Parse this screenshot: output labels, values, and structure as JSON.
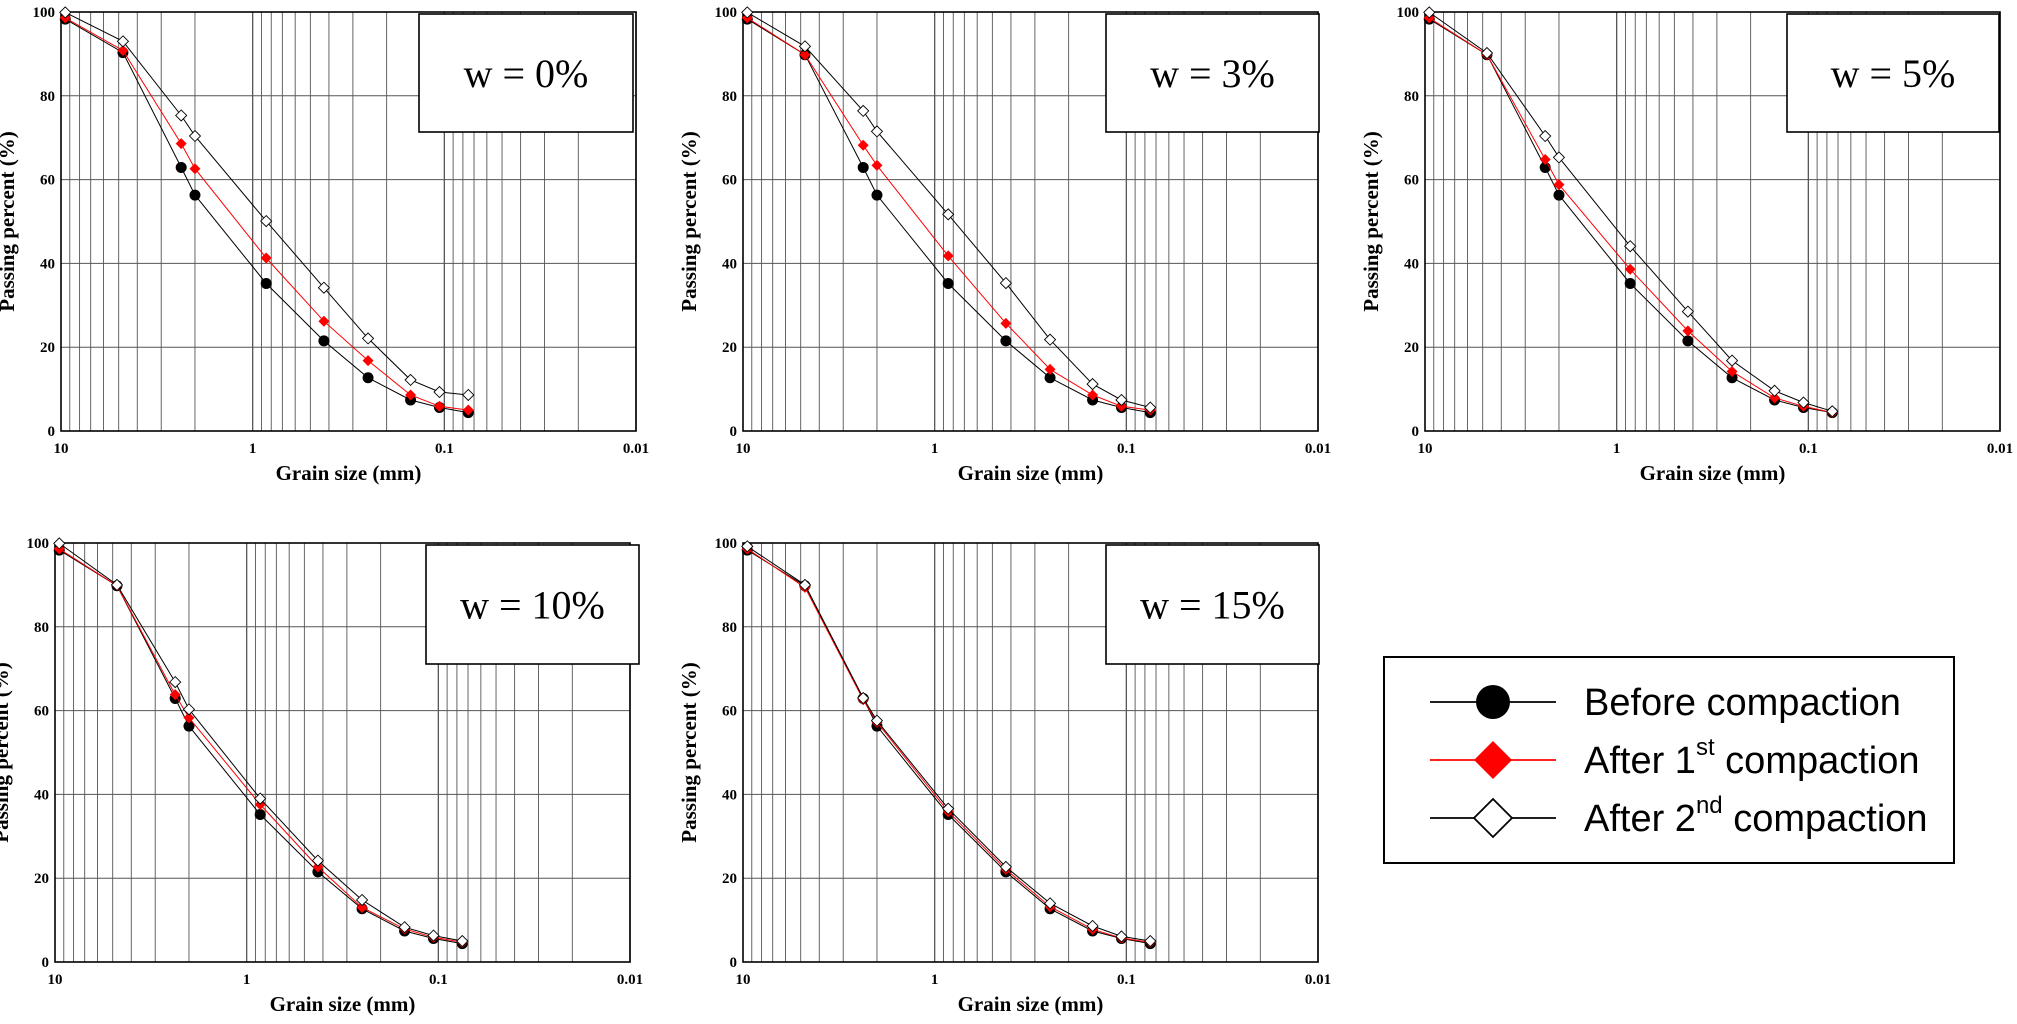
{
  "chart_data": [
    {
      "type": "line",
      "annotation": "w = 0%",
      "xlabel": "Grain size (mm)",
      "ylabel": "Passing percent (%)",
      "xscale": "log",
      "x_reversed": true,
      "xlim": [
        10,
        0.01
      ],
      "ylim": [
        0,
        100
      ],
      "xticks": [
        "10",
        "1",
        "0.1",
        "0.01"
      ],
      "yticks": [
        "0",
        "20",
        "40",
        "60",
        "80",
        "100"
      ],
      "grid": true,
      "x": [
        9.5,
        4.75,
        2.36,
        2.0,
        0.85,
        0.425,
        0.25,
        0.15,
        0.106,
        0.075
      ],
      "series": [
        {
          "values": [
            98.3,
            90.3,
            62.9,
            56.3,
            35.2,
            21.5,
            12.7,
            7.4,
            5.6,
            4.4
          ]
        },
        {
          "values": [
            98.6,
            90.8,
            68.6,
            62.6,
            41.3,
            26.2,
            16.8,
            8.6,
            5.9,
            5.0
          ]
        },
        {
          "values": [
            99.9,
            93.0,
            75.3,
            70.4,
            50.1,
            34.2,
            22.1,
            12.2,
            9.3,
            8.6
          ]
        }
      ]
    },
    {
      "type": "line",
      "annotation": "w = 3%",
      "xlabel": "Grain size (mm)",
      "ylabel": "Passing percent (%)",
      "xscale": "log",
      "x_reversed": true,
      "xlim": [
        10,
        0.01
      ],
      "ylim": [
        0,
        100
      ],
      "xticks": [
        "10",
        "1",
        "0.1",
        "0.01"
      ],
      "yticks": [
        "0",
        "20",
        "40",
        "60",
        "80",
        "100"
      ],
      "grid": true,
      "x": [
        9.5,
        4.75,
        2.36,
        2.0,
        0.85,
        0.425,
        0.25,
        0.15,
        0.106,
        0.075
      ],
      "series": [
        {
          "values": [
            98.3,
            89.8,
            62.9,
            56.3,
            35.2,
            21.5,
            12.7,
            7.4,
            5.6,
            4.4
          ]
        },
        {
          "values": [
            98.6,
            89.8,
            68.2,
            63.4,
            41.8,
            25.7,
            14.7,
            8.6,
            5.9,
            5.0
          ]
        },
        {
          "values": [
            99.9,
            91.8,
            76.4,
            71.5,
            51.7,
            35.3,
            21.8,
            11.2,
            7.4,
            5.6
          ]
        }
      ]
    },
    {
      "type": "line",
      "annotation": "w = 5%",
      "xlabel": "Grain size (mm)",
      "ylabel": "Passing percent (%)",
      "xscale": "log",
      "x_reversed": true,
      "xlim": [
        10,
        0.01
      ],
      "ylim": [
        0,
        100
      ],
      "xticks": [
        "10",
        "1",
        "0.1",
        "0.01"
      ],
      "yticks": [
        "0",
        "20",
        "40",
        "60",
        "80",
        "100"
      ],
      "grid": true,
      "x": [
        9.5,
        4.75,
        2.36,
        2.0,
        0.85,
        0.425,
        0.25,
        0.15,
        0.106,
        0.075
      ],
      "series": [
        {
          "values": [
            98.3,
            89.8,
            62.9,
            56.3,
            35.2,
            21.5,
            12.7,
            7.4,
            5.6,
            4.4
          ]
        },
        {
          "values": [
            98.6,
            89.8,
            64.8,
            58.8,
            38.6,
            23.9,
            14.2,
            7.9,
            5.9,
            4.4
          ]
        },
        {
          "values": [
            99.9,
            90.2,
            70.4,
            65.3,
            44.1,
            28.5,
            16.8,
            9.6,
            6.8,
            4.7
          ]
        }
      ]
    },
    {
      "type": "line",
      "annotation": "w = 10%",
      "xlabel": "Grain size (mm)",
      "ylabel": "Passing percent (%)",
      "xscale": "log",
      "x_reversed": true,
      "xlim": [
        10,
        0.01
      ],
      "ylim": [
        0,
        100
      ],
      "xticks": [
        "10",
        "1",
        "0.1",
        "0.01"
      ],
      "yticks": [
        "0",
        "20",
        "40",
        "60",
        "80",
        "100"
      ],
      "grid": true,
      "x": [
        9.5,
        4.75,
        2.36,
        2.0,
        0.85,
        0.425,
        0.25,
        0.15,
        0.106,
        0.075
      ],
      "series": [
        {
          "values": [
            98.3,
            89.8,
            62.9,
            56.3,
            35.2,
            21.5,
            12.7,
            7.4,
            5.6,
            4.4
          ]
        },
        {
          "values": [
            98.6,
            89.8,
            63.8,
            58.3,
            37.6,
            22.7,
            13.0,
            7.9,
            5.9,
            4.7
          ]
        },
        {
          "values": [
            99.9,
            90.0,
            66.8,
            60.3,
            39.0,
            24.2,
            14.8,
            8.3,
            6.3,
            5.0
          ]
        }
      ]
    },
    {
      "type": "line",
      "annotation": "w = 15%",
      "xlabel": "Grain size (mm)",
      "ylabel": "Passing percent (%)",
      "xscale": "log",
      "x_reversed": true,
      "xlim": [
        10,
        0.01
      ],
      "ylim": [
        0,
        100
      ],
      "xticks": [
        "10",
        "1",
        "0.1",
        "0.01"
      ],
      "yticks": [
        "0",
        "20",
        "40",
        "60",
        "80",
        "100"
      ],
      "grid": true,
      "x": [
        9.5,
        4.75,
        2.36,
        2.0,
        0.85,
        0.425,
        0.25,
        0.15,
        0.106,
        0.075
      ],
      "series": [
        {
          "values": [
            98.3,
            89.8,
            62.9,
            56.3,
            35.2,
            21.5,
            12.7,
            7.4,
            5.6,
            4.4
          ]
        },
        {
          "values": [
            98.6,
            89.4,
            62.6,
            57.2,
            35.9,
            22.1,
            13.2,
            7.8,
            5.7,
            4.7
          ]
        },
        {
          "values": [
            99.2,
            90.0,
            63.0,
            57.6,
            36.6,
            22.7,
            14.0,
            8.6,
            6.1,
            5.0
          ]
        }
      ]
    }
  ],
  "legend": {
    "placement": "bottom-right",
    "items": [
      {
        "label": "Before compaction",
        "marker": "filled-circle",
        "color": "#000000"
      },
      {
        "label": "After 1",
        "sup": "st",
        "suffix": " compaction",
        "marker": "filled-diamond",
        "color": "#ff0000"
      },
      {
        "label": "After 2",
        "sup": "nd",
        "suffix": " compaction",
        "marker": "open-diamond",
        "color": "#000000"
      }
    ]
  }
}
